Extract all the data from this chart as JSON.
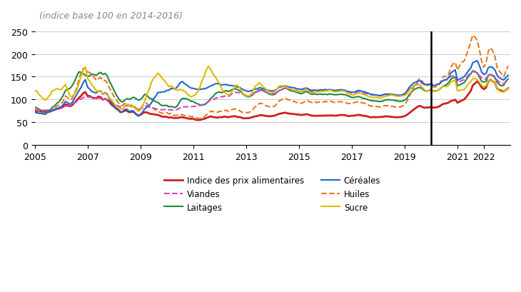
{
  "title": "(indice base 100 en 2014-2016)",
  "ylim": [
    0,
    250
  ],
  "yticks": [
    0,
    50,
    100,
    150,
    200,
    250
  ],
  "vline_x": 2020.0,
  "background_color": "#ffffff",
  "grid_color": "#cccccc",
  "series": {
    "food": {
      "label": "Indice des prix alimentaires",
      "color": "#cc2222",
      "linestyle": "solid",
      "linewidth": 2.0
    },
    "dairy": {
      "label": "Laitages",
      "color": "#228844",
      "linestyle": "solid",
      "linewidth": 1.5
    },
    "oils": {
      "label": "Huiles",
      "color": "#e87722",
      "linestyle": "dashed",
      "linewidth": 1.5
    },
    "meat": {
      "label": "Viandes",
      "color": "#dd44bb",
      "linestyle": "dashed",
      "linewidth": 1.5
    },
    "cereals": {
      "label": "Céréales",
      "color": "#2266cc",
      "linestyle": "solid",
      "linewidth": 1.5
    },
    "sugar": {
      "label": "Sucre",
      "color": "#ddbb00",
      "linestyle": "solid",
      "linewidth": 1.5
    }
  },
  "months_per_year": 12,
  "start_year": 2005,
  "end_year": 2022,
  "food_index": [
    74.0,
    73.8,
    74.0,
    73.5,
    73.2,
    73.8,
    75.2,
    76.5,
    77.8,
    78.2,
    79.5,
    80.1,
    82.0,
    84.5,
    89.2,
    88.0,
    84.9,
    87.3,
    92.5,
    97.5,
    103.5,
    107.5,
    113.3,
    116.5,
    108.0,
    107.5,
    104.5,
    103.0,
    103.5,
    106.5,
    104.8,
    99.6,
    101.5,
    99.0,
    94.2,
    87.8,
    84.8,
    80.0,
    77.0,
    72.3,
    73.2,
    75.8,
    75.1,
    71.9,
    73.4,
    72.5,
    68.3,
    64.5,
    66.5,
    69.5,
    72.2,
    71.6,
    69.3,
    68.0,
    67.8,
    66.5,
    66.2,
    64.0,
    62.2,
    62.2,
    62.0,
    60.0,
    61.0,
    59.5,
    59.5,
    59.5,
    61.0,
    61.0,
    60.0,
    59.0,
    58.0,
    57.5,
    58.0,
    55.5,
    55.0,
    55.0,
    56.5,
    57.5,
    59.5,
    61.5,
    63.0,
    61.5,
    61.0,
    60.0,
    61.5,
    61.0,
    62.5,
    62.0,
    61.0,
    62.5,
    63.0,
    63.5,
    61.5,
    61.5,
    60.0,
    58.5,
    59.0,
    59.0,
    60.0,
    61.5,
    63.0,
    63.5,
    65.5,
    65.5,
    65.0,
    64.0,
    63.5,
    63.0,
    64.0,
    64.5,
    66.5,
    68.5,
    69.5,
    70.5,
    71.0,
    69.5,
    69.0,
    68.5,
    68.0,
    67.0,
    67.0,
    66.0,
    66.5,
    67.5,
    67.5,
    65.5,
    64.5,
    64.5,
    64.0,
    64.5,
    64.5,
    64.5,
    65.0,
    64.5,
    65.0,
    65.0,
    64.5,
    64.5,
    65.5,
    66.0,
    66.0,
    65.5,
    64.0,
    63.5,
    64.5,
    64.5,
    65.5,
    66.5,
    65.5,
    64.5,
    64.0,
    63.0,
    61.5,
    61.0,
    61.5,
    61.0,
    61.5,
    61.5,
    62.0,
    63.0,
    63.0,
    62.5,
    62.0,
    61.5,
    61.0,
    61.0,
    61.5,
    62.0,
    63.5,
    66.0,
    70.0,
    73.5,
    77.5,
    81.0,
    84.5,
    86.0,
    83.5,
    82.0,
    82.5,
    82.5,
    84.0,
    82.0,
    82.5,
    83.5,
    85.5,
    89.0,
    91.0,
    91.5,
    93.5,
    96.5,
    98.0,
    99.5,
    93.0,
    95.5,
    98.0,
    100.0,
    105.5,
    112.0,
    118.5,
    131.5,
    135.0,
    140.0,
    134.5,
    126.5,
    122.5,
    126.5,
    140.0,
    143.5,
    140.0,
    137.0,
    124.0,
    121.0,
    119.0,
    117.5,
    121.5,
    125.0
  ],
  "dairy_index": [
    83.0,
    81.5,
    78.5,
    76.0,
    73.5,
    71.5,
    74.0,
    77.0,
    83.0,
    86.0,
    91.0,
    94.5,
    101.0,
    109.5,
    120.0,
    122.5,
    124.5,
    130.0,
    138.5,
    150.0,
    160.5,
    160.0,
    156.5,
    153.5,
    150.0,
    152.5,
    155.5,
    154.5,
    153.0,
    157.5,
    159.5,
    155.0,
    157.5,
    151.0,
    139.5,
    130.5,
    120.5,
    110.5,
    103.0,
    96.5,
    94.5,
    99.0,
    102.0,
    100.0,
    103.0,
    105.0,
    102.0,
    98.5,
    100.0,
    105.0,
    111.5,
    109.0,
    103.5,
    101.5,
    97.5,
    95.0,
    93.5,
    89.0,
    86.5,
    87.0,
    87.0,
    84.0,
    84.5,
    83.5,
    82.5,
    87.5,
    96.5,
    102.0,
    102.5,
    101.5,
    99.5,
    96.0,
    95.5,
    92.5,
    90.5,
    88.5,
    87.5,
    88.5,
    91.5,
    96.0,
    102.5,
    106.5,
    112.5,
    115.5,
    116.5,
    115.0,
    117.5,
    119.5,
    117.5,
    120.0,
    122.5,
    124.0,
    121.5,
    119.5,
    115.5,
    110.0,
    107.5,
    105.5,
    107.5,
    110.0,
    115.5,
    117.5,
    121.5,
    121.0,
    119.0,
    116.5,
    113.5,
    111.0,
    110.5,
    111.0,
    115.5,
    119.5,
    121.5,
    123.5,
    125.5,
    122.5,
    120.0,
    118.5,
    117.5,
    115.5,
    114.5,
    112.5,
    114.5,
    117.0,
    116.5,
    113.0,
    111.0,
    112.5,
    111.0,
    111.5,
    112.0,
    111.0,
    112.0,
    110.5,
    112.5,
    111.5,
    110.5,
    110.5,
    111.0,
    111.5,
    111.0,
    110.5,
    108.5,
    107.0,
    104.5,
    104.5,
    105.5,
    106.5,
    105.0,
    103.0,
    102.0,
    100.5,
    98.5,
    97.5,
    97.0,
    96.5,
    96.0,
    95.5,
    96.5,
    98.5,
    99.5,
    99.5,
    99.0,
    98.5,
    97.5,
    96.5,
    96.0,
    96.5,
    98.5,
    102.5,
    110.0,
    115.5,
    121.0,
    123.5,
    125.5,
    126.5,
    123.5,
    119.5,
    118.5,
    119.5,
    121.5,
    118.5,
    118.5,
    120.0,
    122.5,
    127.5,
    130.5,
    132.0,
    137.5,
    144.5,
    147.5,
    149.5,
    130.0,
    132.0,
    134.5,
    137.0,
    143.0,
    151.0,
    156.0,
    163.0,
    161.5,
    158.0,
    149.0,
    140.0,
    138.0,
    140.0,
    153.0,
    155.0,
    152.0,
    148.0,
    138.0,
    133.0,
    130.0,
    131.0,
    140.0,
    145.0
  ],
  "oils_index": [
    79.5,
    76.5,
    74.0,
    71.5,
    69.5,
    67.5,
    70.0,
    72.5,
    77.5,
    80.5,
    85.5,
    87.5,
    90.5,
    96.5,
    108.0,
    104.0,
    99.5,
    102.0,
    112.5,
    124.5,
    143.0,
    157.5,
    167.5,
    170.0,
    160.5,
    159.0,
    155.0,
    149.0,
    142.0,
    146.0,
    148.0,
    141.0,
    142.0,
    136.0,
    125.0,
    115.0,
    107.0,
    99.0,
    93.0,
    87.0,
    87.0,
    91.5,
    92.0,
    86.5,
    87.5,
    86.5,
    81.5,
    77.5,
    80.0,
    86.5,
    92.5,
    91.5,
    85.5,
    82.5,
    80.5,
    76.5,
    74.5,
    71.5,
    69.5,
    70.5,
    71.0,
    68.5,
    69.5,
    65.5,
    65.0,
    65.5,
    67.5,
    66.5,
    64.5,
    64.5,
    63.5,
    62.0,
    62.5,
    60.5,
    58.5,
    58.5,
    60.0,
    62.0,
    66.5,
    70.5,
    74.5,
    73.5,
    72.5,
    71.5,
    74.5,
    73.5,
    75.5,
    76.5,
    73.5,
    76.5,
    78.5,
    79.5,
    76.5,
    75.5,
    72.5,
    70.5,
    71.5,
    71.0,
    73.5,
    77.5,
    83.5,
    86.5,
    91.5,
    91.5,
    89.5,
    86.5,
    85.0,
    83.5,
    84.0,
    85.5,
    90.5,
    96.5,
    99.5,
    101.5,
    102.5,
    99.5,
    98.5,
    96.5,
    95.5,
    93.5,
    92.5,
    91.5,
    93.5,
    96.5,
    97.5,
    94.5,
    93.5,
    95.5,
    93.5,
    94.0,
    95.0,
    94.5,
    96.0,
    95.0,
    96.5,
    95.5,
    93.5,
    93.5,
    95.0,
    95.5,
    94.5,
    93.5,
    91.5,
    91.0,
    92.5,
    93.0,
    94.5,
    95.5,
    93.5,
    92.5,
    91.5,
    89.5,
    86.5,
    85.5,
    85.5,
    85.0,
    84.0,
    83.5,
    85.0,
    86.5,
    86.5,
    85.5,
    85.0,
    84.5,
    83.5,
    83.0,
    84.0,
    85.5,
    88.5,
    95.5,
    105.5,
    114.5,
    126.5,
    133.5,
    141.5,
    146.5,
    139.5,
    131.5,
    130.5,
    131.5,
    135.5,
    127.5,
    127.5,
    129.5,
    134.5,
    146.5,
    151.5,
    149.5,
    156.5,
    170.5,
    178.5,
    181.5,
    164.5,
    174.5,
    181.5,
    184.5,
    196.5,
    210.5,
    226.5,
    241.5,
    236.5,
    229.5,
    208.5,
    183.5,
    170.5,
    181.5,
    205.5,
    213.5,
    206.5,
    194.5,
    170.5,
    162.5,
    156.5,
    150.5,
    161.5,
    173.5
  ],
  "meat_index": [
    77.5,
    77.0,
    77.0,
    76.5,
    76.5,
    76.5,
    77.0,
    77.5,
    78.0,
    78.5,
    79.5,
    80.0,
    80.5,
    82.5,
    85.0,
    85.5,
    86.5,
    88.5,
    92.0,
    95.5,
    99.0,
    101.5,
    104.0,
    106.0,
    105.5,
    105.5,
    104.5,
    103.5,
    102.5,
    102.5,
    102.5,
    100.5,
    100.5,
    99.5,
    96.5,
    93.5,
    90.5,
    87.5,
    85.5,
    83.0,
    82.5,
    85.0,
    86.5,
    85.0,
    85.0,
    84.0,
    81.0,
    79.0,
    79.0,
    81.5,
    86.0,
    86.0,
    83.0,
    81.0,
    81.0,
    79.5,
    79.0,
    78.0,
    77.5,
    78.0,
    78.5,
    77.0,
    77.5,
    76.5,
    77.0,
    78.5,
    81.5,
    83.0,
    84.0,
    84.0,
    84.0,
    84.0,
    85.0,
    85.0,
    86.0,
    87.0,
    88.0,
    90.0,
    93.0,
    96.0,
    99.0,
    100.0,
    102.0,
    104.0,
    106.0,
    106.0,
    107.0,
    108.0,
    107.0,
    110.0,
    114.0,
    116.0,
    115.0,
    115.0,
    113.0,
    111.0,
    109.0,
    107.5,
    109.0,
    111.0,
    114.5,
    116.5,
    119.5,
    119.5,
    117.5,
    116.0,
    114.5,
    113.0,
    112.5,
    113.0,
    115.5,
    119.5,
    121.5,
    123.5,
    125.5,
    123.5,
    122.5,
    121.0,
    120.5,
    119.0,
    118.5,
    117.5,
    119.0,
    121.5,
    121.5,
    118.5,
    117.5,
    118.5,
    117.5,
    118.0,
    119.0,
    118.5,
    119.5,
    119.0,
    120.5,
    120.0,
    118.5,
    118.5,
    119.5,
    120.0,
    119.5,
    118.5,
    117.5,
    116.5,
    114.5,
    114.5,
    115.5,
    116.5,
    115.5,
    114.5,
    113.5,
    112.5,
    111.5,
    110.5,
    110.0,
    109.5,
    109.0,
    108.5,
    109.5,
    110.5,
    110.5,
    110.5,
    110.5,
    110.0,
    109.5,
    109.0,
    109.5,
    110.0,
    111.5,
    115.5,
    121.0,
    124.5,
    129.5,
    132.5,
    135.5,
    137.5,
    135.5,
    132.5,
    132.0,
    133.0,
    134.5,
    132.5,
    132.5,
    133.5,
    135.5,
    139.5,
    142.5,
    143.5,
    146.5,
    150.5,
    151.5,
    152.5,
    137.5,
    139.5,
    141.5,
    143.5,
    147.5,
    153.5,
    158.5,
    161.5,
    160.5,
    157.5,
    152.5,
    147.5,
    144.5,
    145.5,
    153.5,
    154.5,
    153.5,
    150.5,
    142.5,
    138.5,
    135.5,
    134.5,
    138.5,
    141.5
  ],
  "cereals_index": [
    72.0,
    70.5,
    69.5,
    69.5,
    68.0,
    68.5,
    72.0,
    73.5,
    75.0,
    76.5,
    79.5,
    82.0,
    84.0,
    89.0,
    95.5,
    93.0,
    89.5,
    93.0,
    102.0,
    110.5,
    118.5,
    126.0,
    137.0,
    143.5,
    127.5,
    122.5,
    117.5,
    115.5,
    114.5,
    118.5,
    119.0,
    111.5,
    115.0,
    111.5,
    101.5,
    91.5,
    86.5,
    81.0,
    77.5,
    71.5,
    73.5,
    78.5,
    78.5,
    73.0,
    75.5,
    74.5,
    67.5,
    64.0,
    66.5,
    72.5,
    79.5,
    83.5,
    86.5,
    92.5,
    101.5,
    107.5,
    115.5,
    115.5,
    116.5,
    117.0,
    120.0,
    120.5,
    124.5,
    123.5,
    124.0,
    129.0,
    136.5,
    139.5,
    135.0,
    132.0,
    128.0,
    125.0,
    124.5,
    123.0,
    122.5,
    122.0,
    123.0,
    123.5,
    125.0,
    127.5,
    130.0,
    131.5,
    134.5,
    135.0,
    133.5,
    132.0,
    132.5,
    133.0,
    131.0,
    131.0,
    130.0,
    130.0,
    127.0,
    127.0,
    123.5,
    121.0,
    119.0,
    117.5,
    119.0,
    120.5,
    123.0,
    123.0,
    126.0,
    125.0,
    123.0,
    121.5,
    120.5,
    119.0,
    119.0,
    119.5,
    123.0,
    127.0,
    128.0,
    129.0,
    130.0,
    128.0,
    127.0,
    126.0,
    125.5,
    123.5,
    123.0,
    122.0,
    123.5,
    125.0,
    124.5,
    121.0,
    120.0,
    121.0,
    120.0,
    120.5,
    121.5,
    121.0,
    122.0,
    121.0,
    122.0,
    121.0,
    120.0,
    120.0,
    121.0,
    121.5,
    121.0,
    120.0,
    118.0,
    117.0,
    116.0,
    116.0,
    118.0,
    120.0,
    119.0,
    117.5,
    116.5,
    115.0,
    112.5,
    111.0,
    110.5,
    110.0,
    109.0,
    108.5,
    110.0,
    111.5,
    112.0,
    112.0,
    111.5,
    111.0,
    110.0,
    109.0,
    109.5,
    110.5,
    113.0,
    118.0,
    126.0,
    131.0,
    136.0,
    138.0,
    140.0,
    141.0,
    138.0,
    134.0,
    133.0,
    133.0,
    134.0,
    131.0,
    131.0,
    133.0,
    135.0,
    140.0,
    143.0,
    143.0,
    148.0,
    158.0,
    162.0,
    165.0,
    142.0,
    145.0,
    147.0,
    150.0,
    156.0,
    163.0,
    169.0,
    181.0,
    183.0,
    185.0,
    174.0,
    160.0,
    155.0,
    157.0,
    170.0,
    172.0,
    170.0,
    165.0,
    153.0,
    148.0,
    145.0,
    143.0,
    148.0,
    153.0
  ],
  "sugar_index": [
    120.5,
    118.0,
    111.0,
    106.0,
    101.0,
    99.0,
    104.0,
    110.0,
    119.0,
    121.0,
    124.0,
    122.0,
    122.0,
    127.0,
    133.0,
    120.0,
    108.0,
    106.0,
    112.0,
    119.0,
    134.0,
    150.0,
    164.0,
    171.0,
    146.0,
    140.0,
    132.0,
    126.0,
    119.0,
    118.0,
    119.0,
    113.0,
    113.0,
    110.0,
    104.0,
    98.0,
    92.0,
    86.0,
    81.0,
    79.0,
    79.0,
    86.0,
    90.0,
    85.0,
    84.0,
    83.0,
    79.0,
    74.0,
    77.0,
    85.0,
    97.0,
    112.0,
    122.0,
    138.0,
    146.0,
    152.0,
    158.0,
    153.0,
    146.0,
    141.0,
    135.0,
    128.0,
    130.0,
    126.0,
    122.0,
    120.0,
    122.0,
    121.0,
    118.0,
    114.0,
    109.0,
    106.0,
    108.0,
    111.0,
    117.0,
    127.0,
    141.0,
    151.0,
    166.0,
    173.0,
    166.0,
    156.0,
    150.0,
    142.0,
    134.0,
    123.0,
    116.0,
    113.0,
    109.0,
    113.0,
    120.0,
    131.0,
    131.0,
    126.0,
    118.0,
    111.0,
    109.0,
    107.0,
    110.0,
    117.0,
    128.0,
    132.0,
    137.0,
    132.0,
    127.0,
    123.0,
    119.0,
    116.0,
    116.0,
    117.0,
    123.0,
    129.0,
    130.0,
    130.0,
    129.0,
    125.0,
    124.0,
    121.0,
    120.0,
    117.5,
    118.0,
    117.0,
    120.0,
    123.0,
    120.0,
    115.0,
    114.0,
    117.0,
    116.5,
    117.0,
    118.0,
    117.5,
    119.0,
    119.0,
    121.0,
    119.0,
    117.0,
    117.0,
    118.0,
    119.0,
    119.0,
    118.0,
    114.0,
    112.0,
    110.5,
    110.0,
    112.0,
    115.0,
    114.0,
    112.0,
    110.0,
    108.0,
    106.0,
    105.0,
    104.5,
    105.0,
    104.0,
    103.0,
    105.0,
    107.0,
    108.0,
    109.0,
    110.0,
    109.0,
    108.0,
    107.0,
    107.5,
    108.0,
    109.0,
    112.0,
    119.0,
    125.0,
    130.0,
    131.0,
    132.0,
    132.0,
    127.0,
    121.0,
    119.0,
    119.0,
    120.0,
    118.0,
    118.0,
    120.0,
    123.0,
    127.0,
    129.0,
    128.0,
    131.0,
    138.0,
    141.0,
    142.0,
    119.0,
    120.0,
    121.0,
    122.0,
    127.0,
    134.0,
    139.0,
    146.0,
    146.0,
    144.0,
    138.0,
    131.0,
    128.0,
    130.0,
    141.0,
    143.0,
    141.0,
    137.0,
    124.0,
    119.0,
    117.0,
    117.0,
    122.0,
    125.0
  ]
}
